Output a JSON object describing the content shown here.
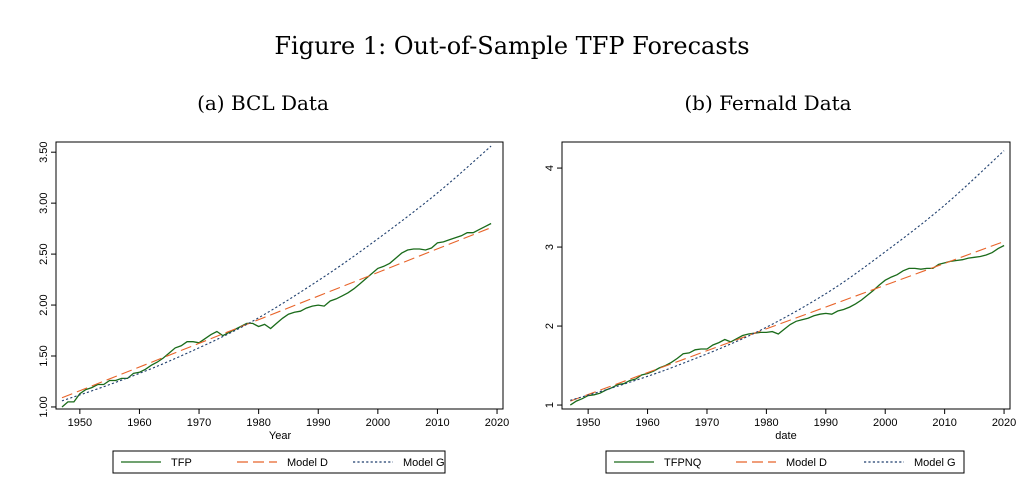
{
  "figure": {
    "title": "Figure 1: Out-of-Sample TFP Forecasts"
  },
  "chart_data": [
    {
      "type": "line",
      "panel_title": "(a) BCL Data",
      "xlabel": "Year",
      "ylabel": "",
      "xlim": [
        1946,
        2021
      ],
      "ylim": [
        0.98,
        3.6
      ],
      "x_ticks": [
        1950,
        1960,
        1970,
        1980,
        1990,
        2000,
        2010,
        2020
      ],
      "x_tick_labels": [
        "1950",
        "1960",
        "1970",
        "1980",
        "1990",
        "2000",
        "2010",
        "2020"
      ],
      "y_ticks": [
        1.0,
        1.5,
        2.0,
        2.5,
        3.0,
        3.5
      ],
      "y_tick_labels": [
        "1.00",
        "1.50",
        "2.00",
        "2.50",
        "3.00",
        "3.50"
      ],
      "grid": false,
      "legend_position": "bottom",
      "series": [
        {
          "name": "TFP",
          "color": "#1a6b1a",
          "style": "solid",
          "x": [
            1947,
            1948,
            1949,
            1950,
            1951,
            1952,
            1953,
            1954,
            1955,
            1956,
            1957,
            1958,
            1959,
            1960,
            1961,
            1962,
            1963,
            1964,
            1965,
            1966,
            1967,
            1968,
            1969,
            1970,
            1971,
            1972,
            1973,
            1974,
            1975,
            1976,
            1977,
            1978,
            1979,
            1980,
            1981,
            1982,
            1983,
            1984,
            1985,
            1986,
            1987,
            1988,
            1989,
            1990,
            1991,
            1992,
            1993,
            1994,
            1995,
            1996,
            1997,
            1998,
            1999,
            2000,
            2001,
            2002,
            2003,
            2004,
            2005,
            2006,
            2007,
            2008,
            2009,
            2010,
            2011,
            2012,
            2013,
            2014,
            2015,
            2016,
            2017,
            2018,
            2019
          ],
          "y": [
            1.0,
            1.05,
            1.05,
            1.13,
            1.17,
            1.19,
            1.22,
            1.22,
            1.26,
            1.26,
            1.28,
            1.28,
            1.33,
            1.34,
            1.37,
            1.41,
            1.44,
            1.48,
            1.53,
            1.58,
            1.6,
            1.64,
            1.64,
            1.63,
            1.67,
            1.71,
            1.74,
            1.7,
            1.73,
            1.76,
            1.79,
            1.82,
            1.82,
            1.79,
            1.81,
            1.77,
            1.82,
            1.87,
            1.91,
            1.93,
            1.94,
            1.97,
            1.99,
            2.0,
            1.99,
            2.04,
            2.06,
            2.09,
            2.12,
            2.16,
            2.21,
            2.26,
            2.31,
            2.36,
            2.38,
            2.41,
            2.46,
            2.51,
            2.54,
            2.55,
            2.55,
            2.54,
            2.56,
            2.61,
            2.62,
            2.64,
            2.66,
            2.68,
            2.71,
            2.71,
            2.74,
            2.77,
            2.8
          ]
        },
        {
          "name": "Model D",
          "color": "#e8642a",
          "style": "dashed",
          "x": [
            1947,
            1978,
            2019
          ],
          "y": [
            1.09,
            1.81,
            2.76
          ]
        },
        {
          "name": "Model G",
          "color": "#1f3f6e",
          "style": "dotted",
          "x": [
            1947,
            1955,
            1965,
            1978,
            1990,
            2000,
            2010,
            2019
          ],
          "y": [
            1.06,
            1.22,
            1.45,
            1.81,
            2.24,
            2.65,
            3.1,
            3.56
          ]
        }
      ]
    },
    {
      "type": "line",
      "panel_title": "(b) Fernald Data",
      "xlabel": "date",
      "ylabel": "",
      "xlim": [
        1945.6,
        2021
      ],
      "ylim": [
        0.95,
        4.33
      ],
      "x_ticks": [
        1950,
        1960,
        1970,
        1980,
        1990,
        2000,
        2010,
        2020
      ],
      "x_tick_labels": [
        "1950",
        "1960",
        "1970",
        "1980",
        "1990",
        "2000",
        "2010",
        "2020"
      ],
      "y_ticks": [
        1,
        2,
        3,
        4
      ],
      "y_tick_labels": [
        "1",
        "2",
        "3",
        "4"
      ],
      "grid": false,
      "legend_position": "bottom",
      "series": [
        {
          "name": "TFPNQ",
          "color": "#1a6b1a",
          "style": "solid",
          "x": [
            1947,
            1948,
            1949,
            1950,
            1951,
            1952,
            1953,
            1954,
            1955,
            1956,
            1957,
            1958,
            1959,
            1960,
            1961,
            1962,
            1963,
            1964,
            1965,
            1966,
            1967,
            1968,
            1969,
            1970,
            1971,
            1972,
            1973,
            1974,
            1975,
            1976,
            1977,
            1978,
            1979,
            1980,
            1981,
            1982,
            1983,
            1984,
            1985,
            1986,
            1987,
            1988,
            1989,
            1990,
            1991,
            1992,
            1993,
            1994,
            1995,
            1996,
            1997,
            1998,
            1999,
            2000,
            2001,
            2002,
            2003,
            2004,
            2005,
            2006,
            2007,
            2008,
            2009,
            2010,
            2011,
            2012,
            2013,
            2014,
            2015,
            2016,
            2017,
            2018,
            2019,
            2020
          ],
          "y": [
            1.0,
            1.05,
            1.08,
            1.12,
            1.13,
            1.15,
            1.19,
            1.22,
            1.26,
            1.27,
            1.31,
            1.33,
            1.38,
            1.4,
            1.43,
            1.47,
            1.5,
            1.54,
            1.59,
            1.65,
            1.66,
            1.7,
            1.71,
            1.71,
            1.76,
            1.79,
            1.83,
            1.8,
            1.84,
            1.88,
            1.9,
            1.91,
            1.92,
            1.92,
            1.93,
            1.9,
            1.96,
            2.02,
            2.06,
            2.08,
            2.1,
            2.13,
            2.15,
            2.16,
            2.15,
            2.19,
            2.21,
            2.24,
            2.28,
            2.33,
            2.39,
            2.45,
            2.52,
            2.58,
            2.62,
            2.65,
            2.7,
            2.73,
            2.73,
            2.72,
            2.73,
            2.73,
            2.78,
            2.8,
            2.82,
            2.83,
            2.84,
            2.86,
            2.87,
            2.88,
            2.9,
            2.93,
            2.98,
            3.02
          ]
        },
        {
          "name": "Model D",
          "color": "#e8642a",
          "style": "dashed",
          "x": [
            1947,
            1978,
            2020
          ],
          "y": [
            1.05,
            1.91,
            3.07
          ]
        },
        {
          "name": "Model G",
          "color": "#1f3f6e",
          "style": "dotted",
          "x": [
            1947,
            1955,
            1965,
            1978,
            1990,
            2000,
            2010,
            2020
          ],
          "y": [
            1.06,
            1.24,
            1.5,
            1.91,
            2.41,
            2.94,
            3.53,
            4.22
          ]
        }
      ]
    }
  ]
}
